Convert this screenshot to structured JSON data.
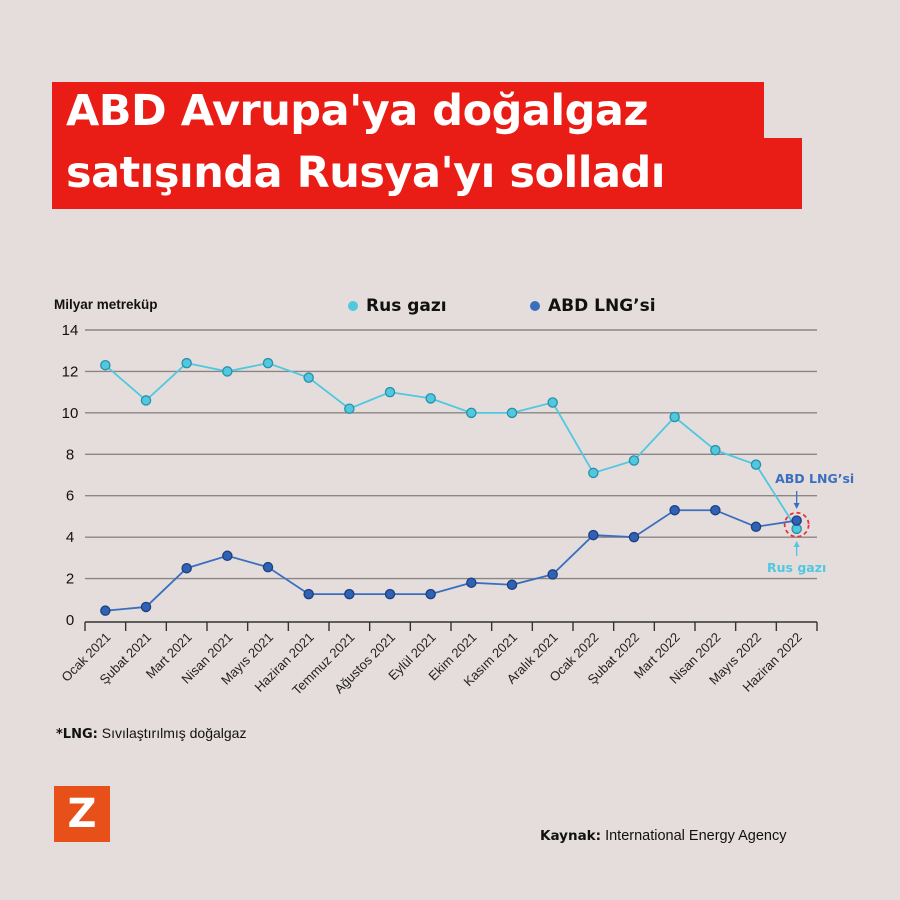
{
  "header": {
    "title_line1": "ABD Avrupa'ya doğalgaz",
    "title_line2": "satışında Rusya'yı solladı"
  },
  "colors": {
    "background": "#e5dddb",
    "title_bg": "#ea1d16",
    "rus": "#4fc8e0",
    "rus_stroke": "#2a8fa8",
    "abd": "#3a6fc0",
    "abd_stroke": "#1e3f80",
    "grid": "#8a8686",
    "highlight": "#e8333a",
    "logo": "#e8501a"
  },
  "legend": {
    "rus_label": "Rus gazı",
    "abd_label": "ABD LNG’si"
  },
  "annotations": {
    "abd_label": "ABD LNG’si",
    "rus_label": "Rus gazı"
  },
  "footnote": {
    "term": "*LNG:",
    "definition": " Sıvılaştırılmış doğalgaz"
  },
  "logo": {
    "letter": "Z"
  },
  "source": {
    "label": "Kaynak:",
    "value": " International Energy Agency"
  },
  "chart_data": {
    "type": "line",
    "title": "ABD Avrupa'ya doğalgaz satışında Rusya'yı solladı",
    "ylabel": "Milyar metreküp",
    "xlabel": "",
    "ylim": [
      0,
      14
    ],
    "yticks": [
      0,
      2,
      4,
      6,
      8,
      10,
      12,
      14
    ],
    "grid": true,
    "legend_position": "top",
    "categories": [
      "Ocak 2021",
      "Şubat 2021",
      "Mart 2021",
      "Nisan 2021",
      "Mayıs 2021",
      "Haziran 2021",
      "Temmuz 2021",
      "Ağustos 2021",
      "Eylül 2021",
      "Ekim 2021",
      "Kasım 2021",
      "Aralık 2021",
      "Ocak 2022",
      "Şubat 2022",
      "Mart 2022",
      "Nisan 2022",
      "Mayıs 2022",
      "Haziran 2022"
    ],
    "series": [
      {
        "name": "Rus gazı",
        "values": [
          12.3,
          10.6,
          12.4,
          12.0,
          12.4,
          11.7,
          10.2,
          11.0,
          10.7,
          10.0,
          10.0,
          10.5,
          7.1,
          7.7,
          9.8,
          8.2,
          7.5,
          4.4
        ]
      },
      {
        "name": "ABD LNG’si",
        "values": [
          0.45,
          0.63,
          2.5,
          3.1,
          2.55,
          1.25,
          1.25,
          1.25,
          1.25,
          1.8,
          1.7,
          2.2,
          4.1,
          4.0,
          5.3,
          5.3,
          4.5,
          4.8
        ]
      }
    ],
    "annotations": [
      {
        "text": "ABD LNG’si",
        "target": "Haziran 2022",
        "series": "ABD LNG’si"
      },
      {
        "text": "Rus gazı",
        "target": "Haziran 2022",
        "series": "Rus gazı"
      }
    ]
  }
}
